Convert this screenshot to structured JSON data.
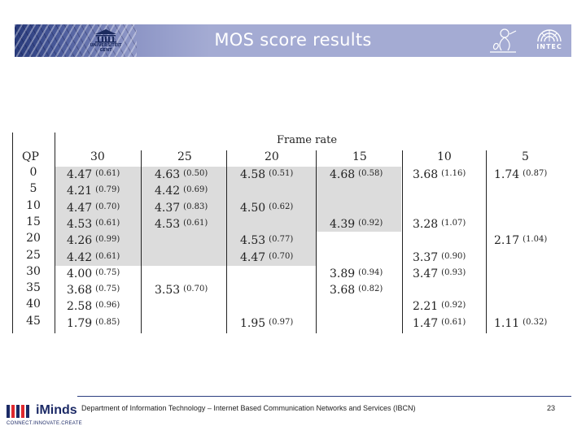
{
  "header": {
    "title": "MOS score results",
    "left_logo": {
      "icon": "ugent-building-icon",
      "line1": "UNIVERSITEIT",
      "line2": "GENT"
    },
    "right_logo": {
      "icon": "intec-arc-icon",
      "text": "INTEC"
    },
    "sketch_icon": "figure-sketch-icon"
  },
  "table": {
    "group_header": "Frame rate",
    "row_header": "QP",
    "columns": [
      "30",
      "25",
      "20",
      "15",
      "10",
      "5"
    ],
    "rows": [
      {
        "qp": "0",
        "cells": [
          {
            "v": "4.47",
            "s": "(0.61)"
          },
          {
            "v": "4.63",
            "s": "(0.50)"
          },
          {
            "v": "4.58",
            "s": "(0.51)"
          },
          {
            "v": "4.68",
            "s": "(0.58)"
          },
          {
            "v": "3.68",
            "s": "(1.16)"
          },
          {
            "v": "1.74",
            "s": "(0.87)"
          }
        ]
      },
      {
        "qp": "5",
        "cells": [
          {
            "v": "4.21",
            "s": "(0.79)"
          },
          {
            "v": "4.42",
            "s": "(0.69)"
          },
          null,
          null,
          null,
          null
        ]
      },
      {
        "qp": "10",
        "cells": [
          {
            "v": "4.47",
            "s": "(0.70)"
          },
          {
            "v": "4.37",
            "s": "(0.83)"
          },
          {
            "v": "4.50",
            "s": "(0.62)"
          },
          null,
          null,
          null
        ]
      },
      {
        "qp": "15",
        "cells": [
          {
            "v": "4.53",
            "s": "(0.61)"
          },
          {
            "v": "4.53",
            "s": "(0.61)"
          },
          null,
          {
            "v": "4.39",
            "s": "(0.92)"
          },
          {
            "v": "3.28",
            "s": "(1.07)"
          },
          null
        ]
      },
      {
        "qp": "20",
        "cells": [
          {
            "v": "4.26",
            "s": "(0.99)"
          },
          null,
          {
            "v": "4.53",
            "s": "(0.77)"
          },
          null,
          null,
          {
            "v": "2.17",
            "s": "(1.04)"
          }
        ]
      },
      {
        "qp": "25",
        "cells": [
          {
            "v": "4.42",
            "s": "(0.61)"
          },
          null,
          {
            "v": "4.47",
            "s": "(0.70)"
          },
          null,
          {
            "v": "3.37",
            "s": "(0.90)"
          },
          null
        ]
      },
      {
        "qp": "30",
        "cells": [
          {
            "v": "4.00",
            "s": "(0.75)"
          },
          null,
          null,
          {
            "v": "3.89",
            "s": "(0.94)"
          },
          {
            "v": "3.47",
            "s": "(0.93)"
          },
          null
        ]
      },
      {
        "qp": "35",
        "cells": [
          {
            "v": "3.68",
            "s": "(0.75)"
          },
          {
            "v": "3.53",
            "s": "(0.70)"
          },
          null,
          {
            "v": "3.68",
            "s": "(0.82)"
          },
          null,
          null
        ]
      },
      {
        "qp": "40",
        "cells": [
          {
            "v": "2.58",
            "s": "(0.96)"
          },
          null,
          null,
          null,
          {
            "v": "2.21",
            "s": "(0.92)"
          },
          null
        ]
      },
      {
        "qp": "45",
        "cells": [
          {
            "v": "1.79",
            "s": "(0.85)"
          },
          null,
          {
            "v": "1.95",
            "s": "(0.97)"
          },
          null,
          {
            "v": "1.47",
            "s": "(0.61)"
          },
          {
            "v": "1.11",
            "s": "(0.32)"
          }
        ]
      }
    ],
    "shade_color": "#dcdcdc"
  },
  "footer": {
    "logo_text": "iMinds",
    "logo_tagline": "CONNECT.INNOVATE.CREATE",
    "text": "Department of Information Technology – Internet Based Communication Networks and Services (IBCN)",
    "page": "23"
  }
}
